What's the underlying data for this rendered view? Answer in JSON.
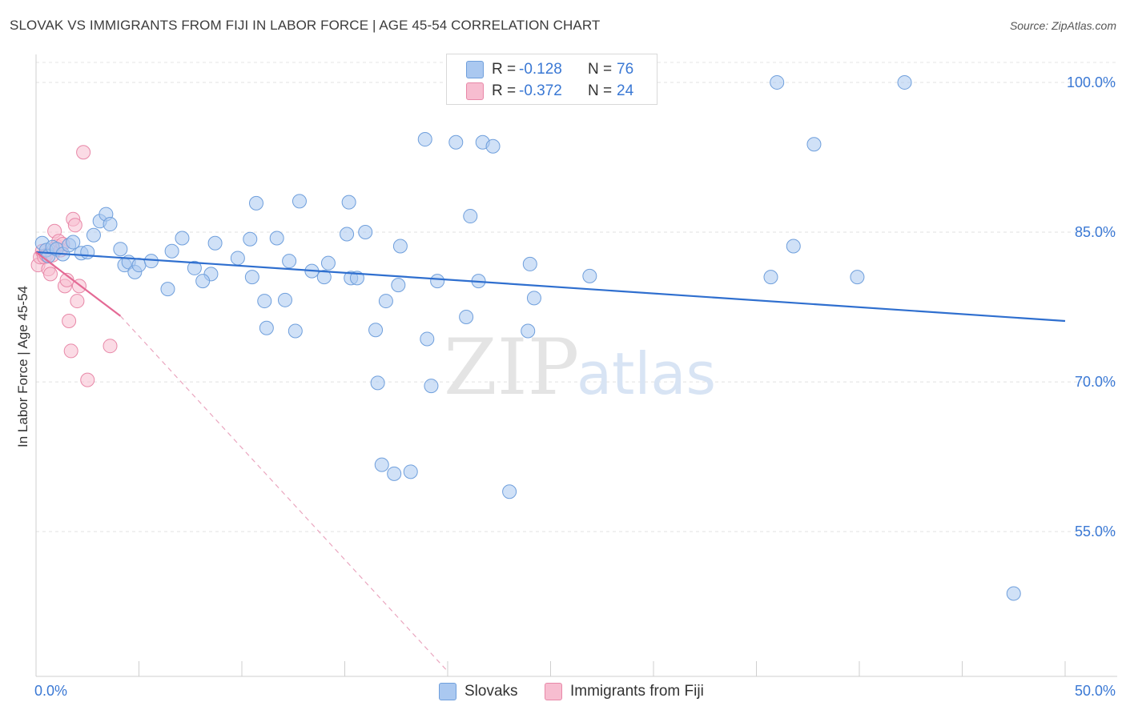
{
  "title": "SLOVAK VS IMMIGRANTS FROM FIJI IN LABOR FORCE | AGE 45-54 CORRELATION CHART",
  "source": "Source: ZipAtlas.com",
  "watermark": {
    "zip": "ZIP",
    "atlas": "atlas"
  },
  "legend": {
    "r_label": "R =",
    "n_label": "N =",
    "entries": [
      {
        "name": "Slovaks",
        "r": "-0.128",
        "n": "76",
        "fill": "#aac8f0",
        "stroke": "#6f9fdc"
      },
      {
        "name": "Immigrants from Fiji",
        "r": "-0.372",
        "n": "24",
        "fill": "#f7bdd0",
        "stroke": "#e888a8"
      }
    ]
  },
  "chart_data": {
    "type": "scatter",
    "title": "SLOVAK VS IMMIGRANTS FROM FIJI IN LABOR FORCE | AGE 45-54 CORRELATION CHART",
    "xlabel": "",
    "ylabel": "In Labor Force | Age 45-54",
    "xlim": [
      0,
      50
    ],
    "ylim": [
      40.5,
      102
    ],
    "x_tick_labels": [
      "0.0%",
      "50.0%"
    ],
    "y_ticks": [
      55,
      70,
      85,
      100
    ],
    "y_tick_labels": [
      "55.0%",
      "70.0%",
      "85.0%",
      "100.0%"
    ],
    "grid": true,
    "series": [
      {
        "name": "Slovaks",
        "color": "#aac8f0",
        "stroke": "#6f9fdc",
        "points": [
          [
            0.3,
            83.9
          ],
          [
            0.5,
            83.2
          ],
          [
            0.6,
            82.6
          ],
          [
            0.8,
            83.5
          ],
          [
            1.0,
            83.3
          ],
          [
            1.3,
            82.8
          ],
          [
            1.6,
            83.7
          ],
          [
            1.8,
            84.0
          ],
          [
            2.2,
            82.9
          ],
          [
            2.5,
            83.0
          ],
          [
            2.8,
            84.7
          ],
          [
            3.1,
            86.1
          ],
          [
            3.4,
            86.8
          ],
          [
            3.6,
            85.8
          ],
          [
            4.1,
            83.3
          ],
          [
            4.3,
            81.7
          ],
          [
            4.5,
            82.0
          ],
          [
            4.8,
            81.0
          ],
          [
            5.0,
            81.7
          ],
          [
            5.6,
            82.1
          ],
          [
            6.4,
            79.3
          ],
          [
            6.6,
            83.1
          ],
          [
            7.1,
            84.4
          ],
          [
            7.7,
            81.4
          ],
          [
            8.5,
            80.8
          ],
          [
            8.1,
            80.1
          ],
          [
            8.7,
            83.9
          ],
          [
            9.8,
            82.4
          ],
          [
            10.4,
            84.3
          ],
          [
            10.5,
            80.5
          ],
          [
            10.7,
            87.9
          ],
          [
            11.1,
            78.1
          ],
          [
            11.7,
            84.4
          ],
          [
            11.2,
            75.4
          ],
          [
            12.6,
            75.1
          ],
          [
            12.3,
            82.1
          ],
          [
            12.1,
            78.2
          ],
          [
            12.8,
            88.1
          ],
          [
            13.4,
            81.1
          ],
          [
            14.0,
            80.5
          ],
          [
            14.2,
            81.9
          ],
          [
            15.3,
            80.4
          ],
          [
            15.2,
            88.0
          ],
          [
            15.1,
            84.8
          ],
          [
            15.6,
            80.4
          ],
          [
            16.0,
            85.0
          ],
          [
            16.5,
            75.2
          ],
          [
            16.6,
            69.9
          ],
          [
            17.0,
            78.1
          ],
          [
            16.8,
            61.7
          ],
          [
            17.4,
            60.8
          ],
          [
            17.7,
            83.6
          ],
          [
            17.6,
            79.7
          ],
          [
            18.2,
            61.0
          ],
          [
            18.9,
            94.3
          ],
          [
            19.0,
            74.3
          ],
          [
            19.5,
            80.1
          ],
          [
            19.2,
            69.6
          ],
          [
            20.4,
            94.0
          ],
          [
            20.9,
            76.5
          ],
          [
            21.1,
            86.6
          ],
          [
            21.7,
            94.0
          ],
          [
            21.5,
            80.1
          ],
          [
            22.2,
            93.6
          ],
          [
            23.9,
            75.1
          ],
          [
            24.0,
            81.8
          ],
          [
            24.2,
            78.4
          ],
          [
            23.0,
            59.0
          ],
          [
            26.9,
            80.6
          ],
          [
            36.0,
            100.0
          ],
          [
            47.5,
            48.8
          ],
          [
            35.7,
            80.5
          ],
          [
            37.8,
            93.8
          ],
          [
            36.8,
            83.6
          ],
          [
            39.9,
            80.5
          ],
          [
            42.2,
            100.0
          ]
        ]
      },
      {
        "name": "Immigrants from Fiji",
        "color": "#f7bdd0",
        "stroke": "#e888a8",
        "points": [
          [
            0.1,
            81.7
          ],
          [
            0.2,
            82.5
          ],
          [
            0.3,
            83.1
          ],
          [
            0.4,
            82.5
          ],
          [
            0.5,
            82.7
          ],
          [
            0.6,
            81.3
          ],
          [
            0.7,
            80.8
          ],
          [
            0.8,
            82.7
          ],
          [
            0.9,
            85.1
          ],
          [
            1.0,
            83.6
          ],
          [
            1.1,
            84.1
          ],
          [
            1.2,
            83.2
          ],
          [
            1.3,
            83.8
          ],
          [
            1.4,
            79.6
          ],
          [
            1.5,
            80.2
          ],
          [
            1.6,
            76.1
          ],
          [
            1.7,
            73.1
          ],
          [
            1.8,
            86.3
          ],
          [
            1.9,
            85.7
          ],
          [
            2.0,
            78.1
          ],
          [
            2.1,
            79.6
          ],
          [
            2.3,
            93.0
          ],
          [
            2.5,
            70.2
          ],
          [
            3.6,
            73.6
          ]
        ]
      }
    ],
    "trendlines": [
      {
        "series": "Slovaks",
        "x": [
          0,
          50
        ],
        "y": [
          83.0,
          76.1
        ]
      },
      {
        "series": "Immigrants from Fiji",
        "solid_x": [
          0,
          4.1
        ],
        "solid_y": [
          83.0,
          76.6
        ],
        "dashed_x": [
          4.1,
          20
        ],
        "dashed_y": [
          76.6,
          41.0
        ]
      }
    ]
  }
}
